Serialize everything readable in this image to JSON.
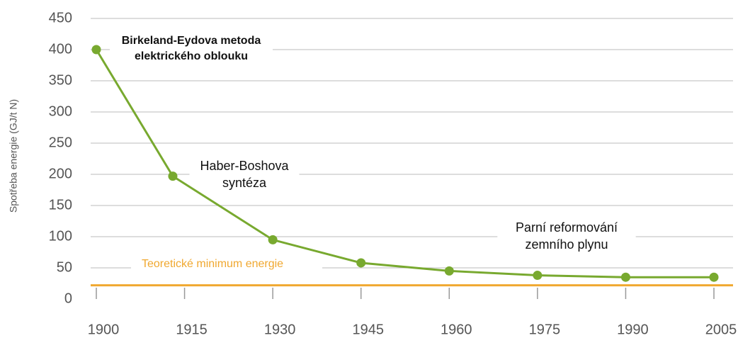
{
  "chart_data": {
    "type": "line",
    "y_label": "Spotřeba energie (GJ/t N)",
    "x": [
      1900,
      1913,
      1930,
      1945,
      1960,
      1975,
      1990,
      2005
    ],
    "series": [
      {
        "color": "#78a92f",
        "values": [
          400,
          197,
          95,
          58,
          45,
          38,
          35,
          35
        ]
      }
    ],
    "xlim": [
      1900,
      2005
    ],
    "xticks": [
      1900,
      1915,
      1930,
      1945,
      1960,
      1975,
      1990,
      2005
    ],
    "ylim": [
      0,
      450
    ],
    "yticks": [
      0,
      50,
      100,
      150,
      200,
      250,
      300,
      350,
      400,
      450
    ],
    "grid": true,
    "reference_line": {
      "value": 22,
      "label": "Teoretické minimum energie",
      "color": "#f0a830"
    },
    "annotations": [
      {
        "lines": [
          "Birkeland-Eydova metoda",
          "elektrického oblouku"
        ]
      },
      {
        "lines": [
          "Haber-Boshova",
          "syntéza"
        ]
      },
      {
        "lines": [
          "Parní reformování",
          "zemního plynu"
        ]
      }
    ]
  }
}
